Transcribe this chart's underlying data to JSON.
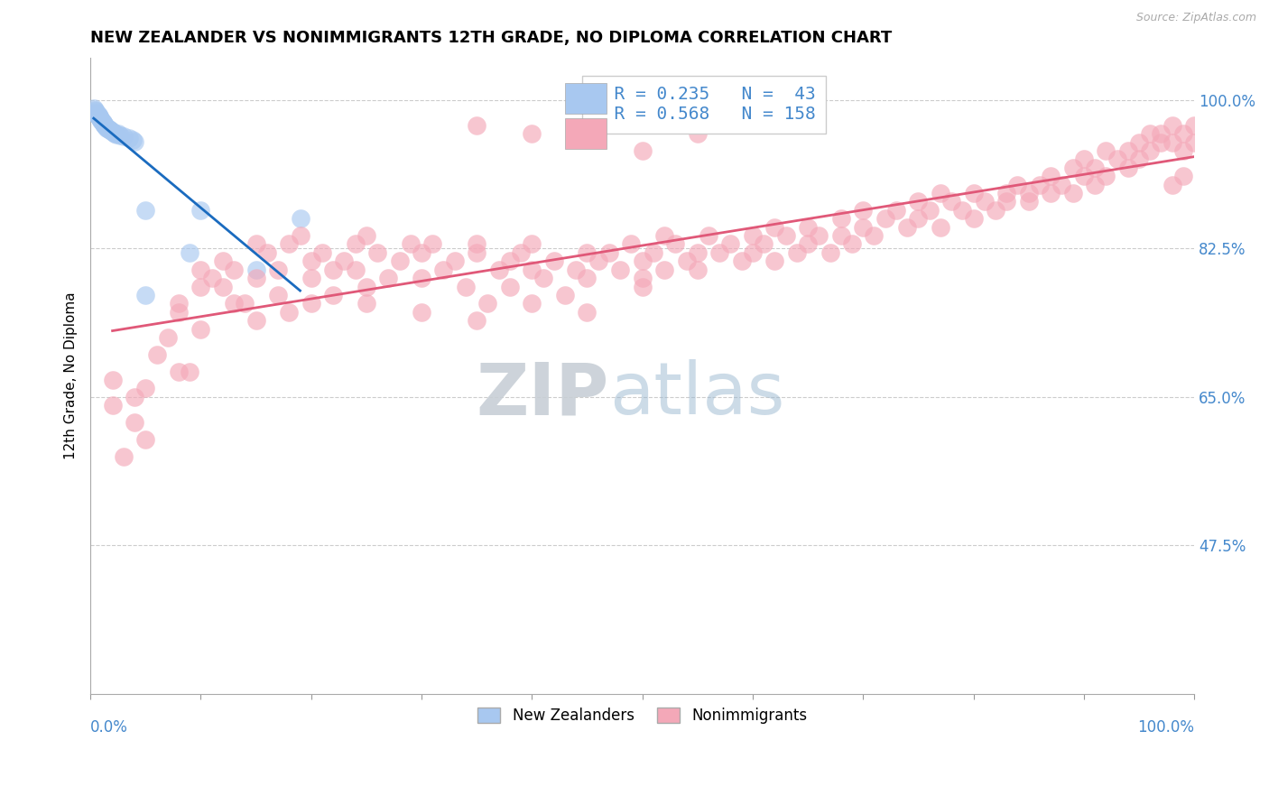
{
  "title": "NEW ZEALANDER VS NONIMMIGRANTS 12TH GRADE, NO DIPLOMA CORRELATION CHART",
  "source": "Source: ZipAtlas.com",
  "ylabel": "12th Grade, No Diploma",
  "xlim": [
    0.0,
    1.0
  ],
  "ylim": [
    0.3,
    1.05
  ],
  "ytick_labels": [
    "47.5%",
    "65.0%",
    "82.5%",
    "100.0%"
  ],
  "ytick_values": [
    0.475,
    0.65,
    0.825,
    1.0
  ],
  "legend_nz_R": 0.235,
  "legend_nz_N": 43,
  "legend_ni_R": 0.568,
  "legend_ni_N": 158,
  "nz_color": "#a8c8f0",
  "nz_line_color": "#1a6bbf",
  "ni_color": "#f4a8b8",
  "ni_line_color": "#e05878",
  "watermark_zip_color": "#c8d0d8",
  "watermark_atlas_color": "#9ab8d0",
  "background_color": "#ffffff",
  "title_fontsize": 13,
  "tick_label_color": "#4488cc",
  "nz_scatter": [
    [
      0.003,
      0.99
    ],
    [
      0.004,
      0.988
    ],
    [
      0.005,
      0.987
    ],
    [
      0.005,
      0.985
    ],
    [
      0.006,
      0.984
    ],
    [
      0.006,
      0.982
    ],
    [
      0.007,
      0.983
    ],
    [
      0.007,
      0.981
    ],
    [
      0.008,
      0.98
    ],
    [
      0.008,
      0.979
    ],
    [
      0.009,
      0.978
    ],
    [
      0.009,
      0.977
    ],
    [
      0.01,
      0.976
    ],
    [
      0.01,
      0.975
    ],
    [
      0.011,
      0.974
    ],
    [
      0.011,
      0.973
    ],
    [
      0.012,
      0.972
    ],
    [
      0.012,
      0.971
    ],
    [
      0.013,
      0.97
    ],
    [
      0.013,
      0.97
    ],
    [
      0.014,
      0.969
    ],
    [
      0.015,
      0.968
    ],
    [
      0.015,
      0.967
    ],
    [
      0.016,
      0.966
    ],
    [
      0.017,
      0.965
    ],
    [
      0.018,
      0.964
    ],
    [
      0.019,
      0.963
    ],
    [
      0.02,
      0.962
    ],
    [
      0.021,
      0.961
    ],
    [
      0.022,
      0.96
    ],
    [
      0.024,
      0.959
    ],
    [
      0.025,
      0.96
    ],
    [
      0.027,
      0.958
    ],
    [
      0.03,
      0.957
    ],
    [
      0.035,
      0.955
    ],
    [
      0.038,
      0.953
    ],
    [
      0.04,
      0.951
    ],
    [
      0.05,
      0.87
    ],
    [
      0.1,
      0.87
    ],
    [
      0.09,
      0.82
    ],
    [
      0.19,
      0.86
    ],
    [
      0.05,
      0.77
    ],
    [
      0.15,
      0.8
    ]
  ],
  "ni_scatter": [
    [
      0.02,
      0.67
    ],
    [
      0.04,
      0.65
    ],
    [
      0.04,
      0.62
    ],
    [
      0.05,
      0.66
    ],
    [
      0.06,
      0.7
    ],
    [
      0.07,
      0.72
    ],
    [
      0.08,
      0.75
    ],
    [
      0.08,
      0.76
    ],
    [
      0.09,
      0.68
    ],
    [
      0.1,
      0.8
    ],
    [
      0.1,
      0.78
    ],
    [
      0.11,
      0.79
    ],
    [
      0.12,
      0.81
    ],
    [
      0.12,
      0.78
    ],
    [
      0.13,
      0.8
    ],
    [
      0.14,
      0.76
    ],
    [
      0.15,
      0.83
    ],
    [
      0.15,
      0.79
    ],
    [
      0.16,
      0.82
    ],
    [
      0.17,
      0.77
    ],
    [
      0.17,
      0.8
    ],
    [
      0.18,
      0.83
    ],
    [
      0.18,
      0.75
    ],
    [
      0.19,
      0.84
    ],
    [
      0.2,
      0.81
    ],
    [
      0.2,
      0.79
    ],
    [
      0.21,
      0.82
    ],
    [
      0.22,
      0.8
    ],
    [
      0.22,
      0.77
    ],
    [
      0.23,
      0.81
    ],
    [
      0.24,
      0.83
    ],
    [
      0.24,
      0.8
    ],
    [
      0.25,
      0.84
    ],
    [
      0.25,
      0.78
    ],
    [
      0.26,
      0.82
    ],
    [
      0.27,
      0.79
    ],
    [
      0.28,
      0.81
    ],
    [
      0.29,
      0.83
    ],
    [
      0.3,
      0.82
    ],
    [
      0.3,
      0.79
    ],
    [
      0.31,
      0.83
    ],
    [
      0.32,
      0.8
    ],
    [
      0.33,
      0.81
    ],
    [
      0.34,
      0.78
    ],
    [
      0.35,
      0.82
    ],
    [
      0.35,
      0.83
    ],
    [
      0.36,
      0.76
    ],
    [
      0.37,
      0.8
    ],
    [
      0.38,
      0.81
    ],
    [
      0.38,
      0.78
    ],
    [
      0.39,
      0.82
    ],
    [
      0.4,
      0.8
    ],
    [
      0.4,
      0.83
    ],
    [
      0.41,
      0.79
    ],
    [
      0.42,
      0.81
    ],
    [
      0.43,
      0.77
    ],
    [
      0.44,
      0.8
    ],
    [
      0.45,
      0.82
    ],
    [
      0.45,
      0.79
    ],
    [
      0.46,
      0.81
    ],
    [
      0.47,
      0.82
    ],
    [
      0.48,
      0.8
    ],
    [
      0.49,
      0.83
    ],
    [
      0.5,
      0.81
    ],
    [
      0.5,
      0.79
    ],
    [
      0.51,
      0.82
    ],
    [
      0.52,
      0.84
    ],
    [
      0.52,
      0.8
    ],
    [
      0.53,
      0.83
    ],
    [
      0.54,
      0.81
    ],
    [
      0.55,
      0.82
    ],
    [
      0.55,
      0.8
    ],
    [
      0.56,
      0.84
    ],
    [
      0.57,
      0.82
    ],
    [
      0.58,
      0.83
    ],
    [
      0.59,
      0.81
    ],
    [
      0.6,
      0.84
    ],
    [
      0.6,
      0.82
    ],
    [
      0.61,
      0.83
    ],
    [
      0.62,
      0.85
    ],
    [
      0.62,
      0.81
    ],
    [
      0.63,
      0.84
    ],
    [
      0.64,
      0.82
    ],
    [
      0.65,
      0.85
    ],
    [
      0.65,
      0.83
    ],
    [
      0.66,
      0.84
    ],
    [
      0.67,
      0.82
    ],
    [
      0.68,
      0.86
    ],
    [
      0.68,
      0.84
    ],
    [
      0.69,
      0.83
    ],
    [
      0.7,
      0.85
    ],
    [
      0.7,
      0.87
    ],
    [
      0.71,
      0.84
    ],
    [
      0.72,
      0.86
    ],
    [
      0.73,
      0.87
    ],
    [
      0.74,
      0.85
    ],
    [
      0.75,
      0.88
    ],
    [
      0.75,
      0.86
    ],
    [
      0.76,
      0.87
    ],
    [
      0.77,
      0.89
    ],
    [
      0.77,
      0.85
    ],
    [
      0.78,
      0.88
    ],
    [
      0.79,
      0.87
    ],
    [
      0.8,
      0.89
    ],
    [
      0.8,
      0.86
    ],
    [
      0.81,
      0.88
    ],
    [
      0.82,
      0.87
    ],
    [
      0.83,
      0.89
    ],
    [
      0.83,
      0.88
    ],
    [
      0.84,
      0.9
    ],
    [
      0.85,
      0.88
    ],
    [
      0.85,
      0.89
    ],
    [
      0.86,
      0.9
    ],
    [
      0.87,
      0.89
    ],
    [
      0.87,
      0.91
    ],
    [
      0.88,
      0.9
    ],
    [
      0.89,
      0.89
    ],
    [
      0.89,
      0.92
    ],
    [
      0.9,
      0.91
    ],
    [
      0.9,
      0.93
    ],
    [
      0.91,
      0.92
    ],
    [
      0.91,
      0.9
    ],
    [
      0.92,
      0.94
    ],
    [
      0.92,
      0.91
    ],
    [
      0.93,
      0.93
    ],
    [
      0.94,
      0.94
    ],
    [
      0.94,
      0.92
    ],
    [
      0.95,
      0.95
    ],
    [
      0.95,
      0.93
    ],
    [
      0.96,
      0.94
    ],
    [
      0.96,
      0.96
    ],
    [
      0.97,
      0.95
    ],
    [
      0.97,
      0.96
    ],
    [
      0.98,
      0.97
    ],
    [
      0.98,
      0.95
    ],
    [
      0.99,
      0.96
    ],
    [
      0.99,
      0.94
    ],
    [
      1.0,
      0.97
    ],
    [
      1.0,
      0.95
    ],
    [
      0.99,
      0.91
    ],
    [
      0.98,
      0.9
    ],
    [
      0.02,
      0.64
    ],
    [
      0.05,
      0.6
    ],
    [
      0.08,
      0.68
    ],
    [
      0.1,
      0.73
    ],
    [
      0.13,
      0.76
    ],
    [
      0.15,
      0.74
    ],
    [
      0.2,
      0.76
    ],
    [
      0.25,
      0.76
    ],
    [
      0.3,
      0.75
    ],
    [
      0.35,
      0.74
    ],
    [
      0.4,
      0.76
    ],
    [
      0.45,
      0.75
    ],
    [
      0.5,
      0.78
    ],
    [
      0.03,
      0.58
    ],
    [
      0.35,
      0.97
    ],
    [
      0.4,
      0.96
    ],
    [
      0.45,
      0.96
    ],
    [
      0.5,
      0.94
    ],
    [
      0.55,
      0.96
    ]
  ]
}
